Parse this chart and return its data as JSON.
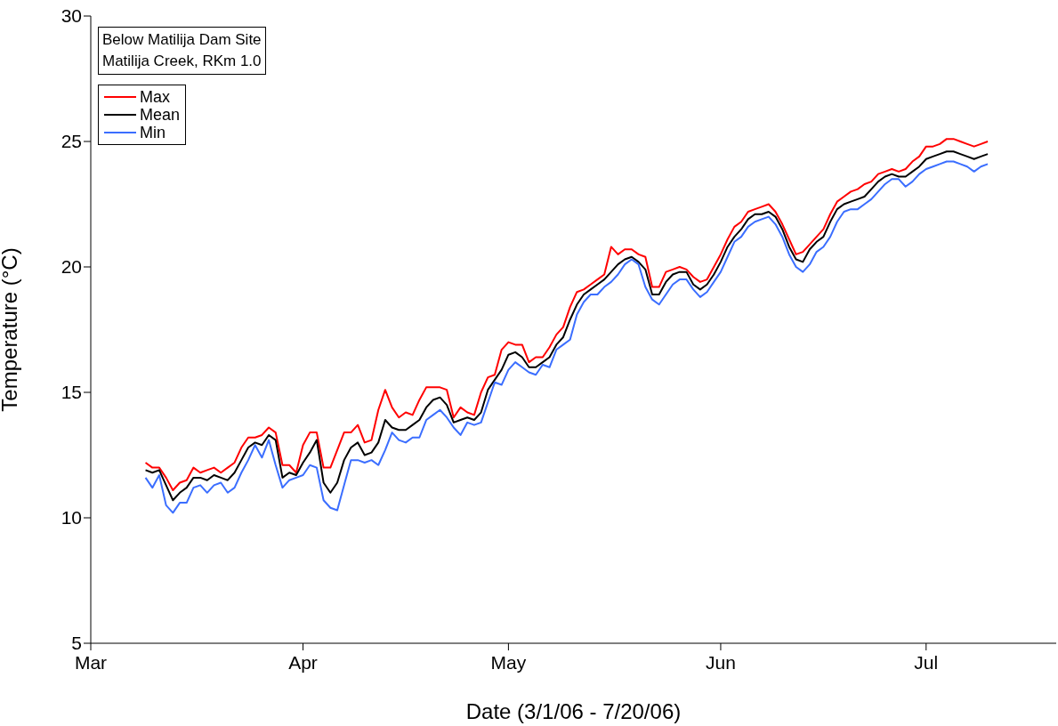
{
  "chart_data": {
    "type": "line",
    "title": "Below Matilija Dam Site",
    "subtitle": "Matilija Creek, RKm 1.0",
    "xlabel": "Date (3/1/06 - 7/20/06)",
    "ylabel": "Temperature (°C)",
    "x": [
      "--03-09",
      "--03-10",
      "--03-11",
      "--03-12",
      "--03-13",
      "--03-14",
      "--03-15",
      "--03-16",
      "--03-17",
      "--03-18",
      "--03-19",
      "--03-20",
      "--03-21",
      "--03-22",
      "--03-23",
      "--03-24",
      "--03-25",
      "--03-26",
      "--03-27",
      "--03-28",
      "--03-29",
      "--03-30",
      "--03-31",
      "--04-01",
      "--04-02",
      "--04-03",
      "--04-04",
      "--04-05",
      "--04-06",
      "--04-07",
      "--04-08",
      "--04-09",
      "--04-10",
      "--04-11",
      "--04-12",
      "--04-13",
      "--04-14",
      "--04-15",
      "--04-16",
      "--04-17",
      "--04-18",
      "--04-19",
      "--04-20",
      "--04-21",
      "--04-22",
      "--04-23",
      "--04-24",
      "--04-25",
      "--04-26",
      "--04-27",
      "--04-28",
      "--04-29",
      "--04-30",
      "--05-01",
      "--05-02",
      "--05-03",
      "--05-04",
      "--05-05",
      "--05-06",
      "--05-07",
      "--05-08",
      "--05-09",
      "--05-10",
      "--05-11",
      "--05-12",
      "--05-13",
      "--05-14",
      "--05-15",
      "--05-16",
      "--05-17",
      "--05-18",
      "--05-19",
      "--05-20",
      "--05-21",
      "--05-22",
      "--05-23",
      "--05-24",
      "--05-25",
      "--05-26",
      "--05-27",
      "--05-28",
      "--05-29",
      "--05-30",
      "--05-31",
      "--06-01",
      "--06-02",
      "--06-03",
      "--06-04",
      "--06-05",
      "--06-06",
      "--06-07",
      "--06-08",
      "--06-09",
      "--06-10",
      "--06-11",
      "--06-12",
      "--06-13",
      "--06-14",
      "--06-15",
      "--06-16",
      "--06-17",
      "--06-18",
      "--06-19",
      "--06-20",
      "--06-21",
      "--06-22",
      "--06-23",
      "--06-24",
      "--06-25",
      "--06-26",
      "--06-27",
      "--06-28",
      "--06-29",
      "--06-30",
      "--07-01",
      "--07-02",
      "--07-03",
      "--07-04",
      "--07-05",
      "--07-06",
      "--07-07",
      "--07-08",
      "--07-09",
      "--07-10"
    ],
    "series": [
      {
        "name": "Max",
        "color": "#ff0000",
        "values": [
          12.2,
          12.0,
          12.0,
          11.6,
          11.1,
          11.4,
          11.5,
          12.0,
          11.8,
          11.9,
          12.0,
          11.8,
          12.0,
          12.2,
          12.8,
          13.2,
          13.2,
          13.3,
          13.6,
          13.4,
          12.1,
          12.1,
          11.8,
          12.9,
          13.4,
          13.4,
          12.0,
          12.0,
          12.7,
          13.4,
          13.4,
          13.7,
          13.0,
          13.1,
          14.3,
          15.1,
          14.4,
          14.0,
          14.2,
          14.1,
          14.7,
          15.2,
          15.2,
          15.2,
          15.1,
          14.0,
          14.4,
          14.2,
          14.1,
          15.0,
          15.6,
          15.7,
          16.7,
          17.0,
          16.9,
          16.9,
          16.2,
          16.4,
          16.4,
          16.8,
          17.3,
          17.6,
          18.4,
          19.0,
          19.1,
          19.3,
          19.5,
          19.7,
          20.8,
          20.5,
          20.7,
          20.7,
          20.5,
          20.4,
          19.2,
          19.2,
          19.8,
          19.9,
          20.0,
          19.9,
          19.6,
          19.4,
          19.5,
          20.0,
          20.5,
          21.1,
          21.6,
          21.8,
          22.2,
          22.3,
          22.4,
          22.5,
          22.2,
          21.7,
          21.1,
          20.5,
          20.6,
          20.9,
          21.2,
          21.5,
          22.1,
          22.6,
          22.8,
          23.0,
          23.1,
          23.3,
          23.4,
          23.7,
          23.8,
          23.9,
          23.8,
          23.9,
          24.2,
          24.4,
          24.8,
          24.8,
          24.9,
          25.1,
          25.1,
          25.0,
          24.9,
          24.8,
          24.9,
          25.0
        ]
      },
      {
        "name": "Mean",
        "color": "#000000",
        "values": [
          11.9,
          11.8,
          11.9,
          11.3,
          10.7,
          11.0,
          11.2,
          11.6,
          11.6,
          11.5,
          11.7,
          11.6,
          11.5,
          11.8,
          12.3,
          12.8,
          13.0,
          12.9,
          13.3,
          13.1,
          11.6,
          11.8,
          11.7,
          12.2,
          12.6,
          13.1,
          11.4,
          11.0,
          11.4,
          12.3,
          12.8,
          13.0,
          12.5,
          12.6,
          13.0,
          13.9,
          13.6,
          13.5,
          13.5,
          13.7,
          13.9,
          14.4,
          14.7,
          14.8,
          14.5,
          13.8,
          13.9,
          14.0,
          13.9,
          14.2,
          15.1,
          15.5,
          15.9,
          16.5,
          16.6,
          16.4,
          16.0,
          16.0,
          16.2,
          16.4,
          16.9,
          17.2,
          17.9,
          18.5,
          18.9,
          19.1,
          19.3,
          19.5,
          19.8,
          20.1,
          20.3,
          20.4,
          20.2,
          19.9,
          18.9,
          18.9,
          19.4,
          19.7,
          19.8,
          19.8,
          19.3,
          19.1,
          19.3,
          19.7,
          20.2,
          20.8,
          21.2,
          21.5,
          21.9,
          22.1,
          22.1,
          22.2,
          22.0,
          21.5,
          20.8,
          20.3,
          20.2,
          20.7,
          21.0,
          21.2,
          21.8,
          22.3,
          22.5,
          22.6,
          22.7,
          22.8,
          23.1,
          23.4,
          23.6,
          23.7,
          23.6,
          23.6,
          23.8,
          24.0,
          24.3,
          24.4,
          24.5,
          24.6,
          24.6,
          24.5,
          24.4,
          24.3,
          24.4,
          24.5
        ]
      },
      {
        "name": "Min",
        "color": "#3b6eff",
        "values": [
          11.6,
          11.2,
          11.7,
          10.5,
          10.2,
          10.6,
          10.6,
          11.2,
          11.3,
          11.0,
          11.3,
          11.4,
          11.0,
          11.2,
          11.8,
          12.3,
          12.9,
          12.4,
          13.1,
          12.1,
          11.2,
          11.5,
          11.6,
          11.7,
          12.1,
          12.0,
          10.7,
          10.4,
          10.3,
          11.3,
          12.3,
          12.3,
          12.2,
          12.3,
          12.1,
          12.7,
          13.4,
          13.1,
          13.0,
          13.2,
          13.2,
          13.9,
          14.1,
          14.3,
          14.0,
          13.6,
          13.3,
          13.8,
          13.7,
          13.8,
          14.6,
          15.4,
          15.3,
          15.9,
          16.2,
          16.0,
          15.8,
          15.7,
          16.1,
          16.0,
          16.7,
          16.9,
          17.1,
          18.1,
          18.6,
          18.9,
          18.9,
          19.2,
          19.4,
          19.7,
          20.1,
          20.3,
          20.1,
          19.2,
          18.7,
          18.5,
          18.9,
          19.3,
          19.5,
          19.5,
          19.1,
          18.8,
          19.0,
          19.4,
          19.8,
          20.4,
          21.0,
          21.2,
          21.6,
          21.8,
          21.9,
          22.0,
          21.7,
          21.2,
          20.5,
          20.0,
          19.8,
          20.1,
          20.6,
          20.8,
          21.2,
          21.8,
          22.2,
          22.3,
          22.3,
          22.5,
          22.7,
          23.0,
          23.3,
          23.5,
          23.5,
          23.2,
          23.4,
          23.7,
          23.9,
          24.0,
          24.1,
          24.2,
          24.2,
          24.1,
          24.0,
          23.8,
          24.0,
          24.1
        ]
      }
    ],
    "xlim": [
      "--03-01",
      "--07-20"
    ],
    "xticks": [
      {
        "value": "--03-01",
        "label": "Mar"
      },
      {
        "value": "--04-01",
        "label": "Apr"
      },
      {
        "value": "--05-01",
        "label": "May"
      },
      {
        "value": "--06-01",
        "label": "Jun"
      },
      {
        "value": "--07-01",
        "label": "Jul"
      }
    ],
    "ylim": [
      5,
      30
    ],
    "yticks": [
      5,
      10,
      15,
      20,
      25,
      30
    ],
    "legend": "top left"
  }
}
